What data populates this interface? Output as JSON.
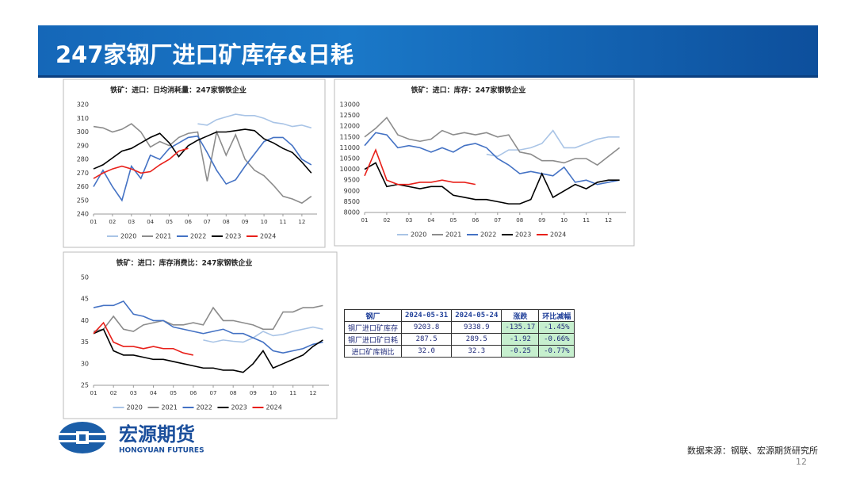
{
  "header": {
    "title": "247家钢厂进口矿库存&日耗"
  },
  "chart_data": [
    {
      "type": "line",
      "title": "铁矿：进口：日均消耗量：247家钢铁企业",
      "x": [
        1,
        1.5,
        2,
        2.5,
        3,
        3.5,
        4,
        4.5,
        5,
        5.5,
        6,
        6.5,
        7,
        7.5,
        8,
        8.5,
        9,
        9.5,
        10,
        10.5,
        11,
        11.5,
        12,
        12.5
      ],
      "xlim": [
        1,
        12.8
      ],
      "xticks": [
        {
          "value": 1,
          "label": "01"
        },
        {
          "value": 2,
          "label": "02"
        },
        {
          "value": 3,
          "label": "03"
        },
        {
          "value": 4,
          "label": "04"
        },
        {
          "value": 5,
          "label": "05"
        },
        {
          "value": 6,
          "label": "06"
        },
        {
          "value": 7,
          "label": "07"
        },
        {
          "value": 8,
          "label": "08"
        },
        {
          "value": 9,
          "label": "09"
        },
        {
          "value": 10,
          "label": "10"
        },
        {
          "value": 11,
          "label": "11"
        },
        {
          "value": 12,
          "label": "12"
        }
      ],
      "ylim": [
        240,
        320
      ],
      "yticks": [
        240,
        250,
        260,
        270,
        280,
        290,
        300,
        310,
        320
      ],
      "legend": "bottom",
      "series": [
        {
          "name": "2020",
          "color": "#a9c4e6",
          "values": [
            null,
            null,
            null,
            null,
            null,
            null,
            null,
            null,
            null,
            null,
            null,
            306,
            305,
            309,
            311,
            313,
            312,
            312,
            310,
            307,
            306,
            304,
            305,
            303
          ]
        },
        {
          "name": "2021",
          "color": "#8c8c8c",
          "values": [
            304,
            303,
            300,
            302,
            306,
            300,
            289,
            293,
            290,
            296,
            299,
            300,
            264,
            300,
            283,
            298,
            280,
            272,
            268,
            261,
            253,
            251,
            248,
            253
          ]
        },
        {
          "name": "2022",
          "color": "#4472c4",
          "values": [
            260,
            272,
            260,
            250,
            275,
            266,
            283,
            280,
            288,
            292,
            296,
            297,
            285,
            272,
            262,
            265,
            275,
            284,
            293,
            296,
            296,
            290,
            280,
            276
          ]
        },
        {
          "name": "2023",
          "color": "#000000",
          "values": [
            273,
            276,
            281,
            286,
            288,
            292,
            296,
            299,
            292,
            282,
            290,
            294,
            297,
            300,
            300,
            301,
            302,
            301,
            295,
            292,
            288,
            285,
            278,
            270
          ]
        },
        {
          "name": "2024",
          "color": "#e8201a",
          "values": [
            266,
            270,
            273,
            275,
            273,
            270,
            271,
            276,
            280,
            286,
            288,
            null,
            null,
            null,
            null,
            null,
            null,
            null,
            null,
            null,
            null,
            null,
            null,
            null
          ]
        }
      ]
    },
    {
      "type": "line",
      "title": "铁矿：进口：库存：247家钢铁企业",
      "x": [
        1,
        1.5,
        2,
        2.5,
        3,
        3.5,
        4,
        4.5,
        5,
        5.5,
        6,
        6.5,
        7,
        7.5,
        8,
        8.5,
        9,
        9.5,
        10,
        10.5,
        11,
        11.5,
        12,
        12.5
      ],
      "xlim": [
        1,
        12.8
      ],
      "xticks": [
        {
          "value": 1,
          "label": "01"
        },
        {
          "value": 2,
          "label": "02"
        },
        {
          "value": 3,
          "label": "03"
        },
        {
          "value": 4,
          "label": "04"
        },
        {
          "value": 5,
          "label": "05"
        },
        {
          "value": 6,
          "label": "06"
        },
        {
          "value": 7,
          "label": "07"
        },
        {
          "value": 8,
          "label": "08"
        },
        {
          "value": 9,
          "label": "09"
        },
        {
          "value": 10,
          "label": "10"
        },
        {
          "value": 11,
          "label": "11"
        },
        {
          "value": 12,
          "label": "12"
        }
      ],
      "ylim": [
        8000,
        13000
      ],
      "yticks": [
        8000,
        8500,
        9000,
        9500,
        10000,
        10500,
        11000,
        11500,
        12000,
        12500,
        13000
      ],
      "legend": "bottom",
      "series": [
        {
          "name": "2020",
          "color": "#a9c4e6",
          "values": [
            null,
            null,
            null,
            null,
            null,
            null,
            null,
            null,
            null,
            null,
            null,
            10700,
            10600,
            10900,
            10900,
            11000,
            11200,
            11800,
            11000,
            11000,
            11200,
            11400,
            11500,
            11500
          ]
        },
        {
          "name": "2021",
          "color": "#8c8c8c",
          "values": [
            11500,
            11900,
            12400,
            11600,
            11400,
            11300,
            11400,
            11800,
            11600,
            11700,
            11600,
            11700,
            11500,
            11600,
            10800,
            10700,
            10400,
            10400,
            10300,
            10500,
            10500,
            10200,
            10600,
            11000
          ]
        },
        {
          "name": "2022",
          "color": "#4472c4",
          "values": [
            11100,
            11700,
            11600,
            11000,
            11100,
            11000,
            10800,
            11000,
            10800,
            11100,
            11200,
            11000,
            10500,
            10200,
            9800,
            9900,
            9800,
            9700,
            10100,
            9400,
            9500,
            9300,
            9400,
            9500
          ]
        },
        {
          "name": "2023",
          "color": "#000000",
          "values": [
            10000,
            10300,
            9200,
            9300,
            9200,
            9100,
            9200,
            9200,
            8800,
            8700,
            8600,
            8600,
            8500,
            8400,
            8400,
            8600,
            9800,
            8700,
            9000,
            9300,
            9100,
            9400,
            9500,
            9500
          ]
        },
        {
          "name": "2024",
          "color": "#e8201a",
          "values": [
            9700,
            10900,
            9500,
            9300,
            9300,
            9400,
            9400,
            9500,
            9400,
            9400,
            9300,
            null,
            null,
            null,
            null,
            null,
            null,
            null,
            null,
            null,
            null,
            null,
            null,
            null
          ]
        }
      ]
    },
    {
      "type": "line",
      "title": "铁矿：进口：库存消费比：247家钢铁企业",
      "x": [
        1,
        1.5,
        2,
        2.5,
        3,
        3.5,
        4,
        4.5,
        5,
        5.5,
        6,
        6.5,
        7,
        7.5,
        8,
        8.5,
        9,
        9.5,
        10,
        10.5,
        11,
        11.5,
        12,
        12.5
      ],
      "xlim": [
        1,
        12.8
      ],
      "xticks": [
        {
          "value": 1,
          "label": "01"
        },
        {
          "value": 2,
          "label": "02"
        },
        {
          "value": 3,
          "label": "03"
        },
        {
          "value": 4,
          "label": "04"
        },
        {
          "value": 5,
          "label": "05"
        },
        {
          "value": 6,
          "label": "06"
        },
        {
          "value": 7,
          "label": "07"
        },
        {
          "value": 8,
          "label": "08"
        },
        {
          "value": 9,
          "label": "09"
        },
        {
          "value": 10,
          "label": "10"
        },
        {
          "value": 11,
          "label": "11"
        },
        {
          "value": 12,
          "label": "12"
        }
      ],
      "ylim": [
        25,
        50
      ],
      "yticks": [
        25,
        30,
        35,
        40,
        45,
        50
      ],
      "legend": "bottom",
      "series": [
        {
          "name": "2020",
          "color": "#a9c4e6",
          "values": [
            null,
            null,
            null,
            null,
            null,
            null,
            null,
            null,
            null,
            null,
            null,
            35.5,
            35,
            35.5,
            35.2,
            35,
            36,
            37.5,
            36.5,
            36.8,
            37.5,
            38,
            38.5,
            38
          ]
        },
        {
          "name": "2021",
          "color": "#8c8c8c",
          "values": [
            37.5,
            38,
            41,
            38,
            37.5,
            39,
            39.5,
            40,
            39,
            39,
            39.5,
            39,
            43,
            40,
            40,
            39.5,
            39,
            38,
            38,
            42,
            42,
            43,
            43,
            43.5
          ]
        },
        {
          "name": "2022",
          "color": "#4472c4",
          "values": [
            43,
            43.5,
            43.5,
            44.5,
            41.5,
            41,
            40,
            40,
            38.5,
            38,
            37.5,
            37,
            37.5,
            38,
            37,
            37,
            36,
            35,
            33,
            32.5,
            33,
            33.5,
            34.5,
            35
          ]
        },
        {
          "name": "2023",
          "color": "#000000",
          "values": [
            37,
            38,
            33,
            32,
            32,
            31.5,
            31,
            31,
            30.5,
            30,
            29.5,
            29,
            29,
            28.5,
            28.5,
            28,
            30,
            33,
            29,
            30,
            31,
            32,
            34,
            35.5
          ]
        },
        {
          "name": "2024",
          "color": "#e8201a",
          "values": [
            37,
            39.5,
            35,
            34,
            34,
            33.5,
            34,
            33.5,
            33.5,
            32.5,
            32,
            null,
            null,
            null,
            null,
            null,
            null,
            null,
            null,
            null,
            null,
            null,
            null,
            null
          ]
        }
      ]
    }
  ],
  "table": {
    "header": [
      "钢厂",
      "2024-05-31",
      "2024-05-24",
      "涨跌",
      "环比减幅"
    ],
    "rows": [
      [
        "钢厂进口矿库存",
        "9203.8",
        "9338.9",
        "-135.17",
        "-1.45%"
      ],
      [
        "钢厂进口矿日耗",
        "287.5",
        "289.5",
        "-1.92",
        "-0.66%"
      ],
      [
        "进口矿库销比",
        "32.0",
        "32.3",
        "-0.25",
        "-0.77%"
      ]
    ]
  },
  "logo": {
    "name": "宏源期货",
    "english": "HONGYUAN FUTURES"
  },
  "footer": {
    "source": "数据来源：钢联、宏源期货研究所",
    "page_number": "12"
  }
}
